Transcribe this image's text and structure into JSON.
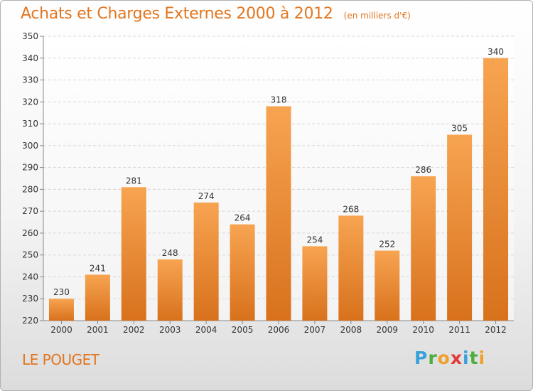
{
  "chart_data": {
    "type": "bar",
    "title": "Achats et Charges Externes 2000 à 2012",
    "subtitle": "(en milliers d'€)",
    "categories": [
      "2000",
      "2001",
      "2002",
      "2003",
      "2004",
      "2005",
      "2006",
      "2007",
      "2008",
      "2009",
      "2010",
      "2011",
      "2012"
    ],
    "values": [
      230,
      241,
      281,
      248,
      274,
      264,
      318,
      254,
      268,
      252,
      286,
      305,
      340
    ],
    "ylim": [
      220,
      350
    ],
    "yticks": [
      220,
      230,
      240,
      250,
      260,
      270,
      280,
      290,
      300,
      310,
      320,
      330,
      340,
      350
    ],
    "grid": true,
    "data_labels": true,
    "bar_color": "#e8832b"
  },
  "commune": "LE POUGET",
  "brand": {
    "name": "Proxiti",
    "letters": [
      "P",
      "r",
      "o",
      "x",
      "i",
      "t",
      "i"
    ]
  }
}
